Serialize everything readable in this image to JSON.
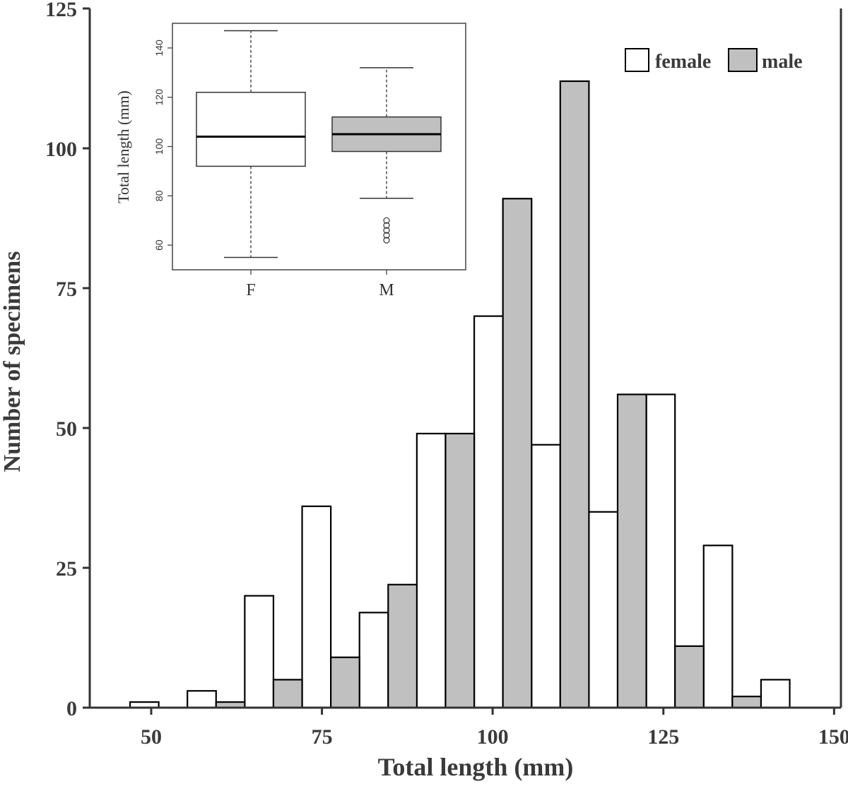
{
  "chart_data": [
    {
      "type": "bar",
      "title": "",
      "xlabel": "Total length (mm)",
      "ylabel": "Number of specimens",
      "xlim": [
        41,
        151
      ],
      "ylim": [
        0,
        125
      ],
      "xticks": [
        50,
        75,
        100,
        125,
        150
      ],
      "yticks": [
        0,
        25,
        50,
        75,
        100,
        125
      ],
      "bin_width": 4.2,
      "legend": {
        "position": "top-right",
        "entries": [
          "female",
          "male"
        ]
      },
      "series": [
        {
          "name": "female",
          "color": "#ffffff",
          "bins": [
            {
              "start": 46.9,
              "value": 1
            },
            {
              "start": 55.3,
              "value": 3
            },
            {
              "start": 63.7,
              "value": 20
            },
            {
              "start": 72.1,
              "value": 36
            },
            {
              "start": 80.5,
              "value": 17
            },
            {
              "start": 88.9,
              "value": 49
            },
            {
              "start": 97.3,
              "value": 70
            },
            {
              "start": 105.7,
              "value": 47
            },
            {
              "start": 114.1,
              "value": 35
            },
            {
              "start": 122.5,
              "value": 56
            },
            {
              "start": 130.9,
              "value": 29
            },
            {
              "start": 139.3,
              "value": 5
            }
          ]
        },
        {
          "name": "male",
          "color": "#c0c0c0",
          "bins": [
            {
              "start": 59.5,
              "value": 1
            },
            {
              "start": 67.9,
              "value": 5
            },
            {
              "start": 76.3,
              "value": 9
            },
            {
              "start": 84.7,
              "value": 22
            },
            {
              "start": 93.1,
              "value": 49
            },
            {
              "start": 101.5,
              "value": 91
            },
            {
              "start": 109.9,
              "value": 112
            },
            {
              "start": 118.3,
              "value": 56
            },
            {
              "start": 126.7,
              "value": 11
            },
            {
              "start": 135.1,
              "value": 2
            }
          ]
        }
      ]
    },
    {
      "type": "box",
      "ylabel": "Total length (mm)",
      "ylim": [
        50,
        150
      ],
      "yticks": [
        60,
        80,
        100,
        120,
        140
      ],
      "categories": [
        "F",
        "M"
      ],
      "boxes": [
        {
          "label": "F",
          "color": "#ffffff",
          "whisker_low": 55,
          "q1": 92,
          "median": 104,
          "q3": 122,
          "whisker_high": 147,
          "outliers": []
        },
        {
          "label": "M",
          "color": "#c0c0c0",
          "whisker_low": 79,
          "q1": 98,
          "median": 105,
          "q3": 112,
          "whisker_high": 132,
          "outliers": [
            62,
            64,
            66,
            68,
            70
          ]
        }
      ]
    }
  ]
}
